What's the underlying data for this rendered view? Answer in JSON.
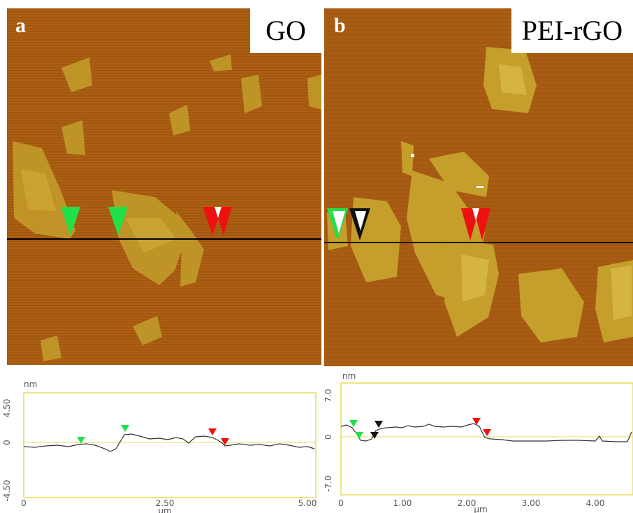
{
  "panels": [
    {
      "letter": "a",
      "label": "GO",
      "profile": {
        "unit_y": "nm",
        "unit_x": "µm",
        "y_ticks": [
          "4.50",
          "0",
          "-4.50"
        ],
        "x_ticks": [
          "0",
          "2.50",
          "5.00"
        ]
      }
    },
    {
      "letter": "b",
      "label": "PEI-rGO",
      "profile": {
        "unit_y": "nm",
        "unit_x": "µm",
        "y_ticks": [
          "7.0",
          "0",
          "-7.0"
        ],
        "x_ticks": [
          "0",
          "1.00",
          "2.00",
          "3.00",
          "4.00"
        ]
      }
    }
  ],
  "colors": {
    "marker_green": "#22e04a",
    "marker_red": "#ee1111",
    "marker_black": "#111111",
    "frame_yellow": "#e6dc5a",
    "afm_background": "#a85c10"
  }
}
